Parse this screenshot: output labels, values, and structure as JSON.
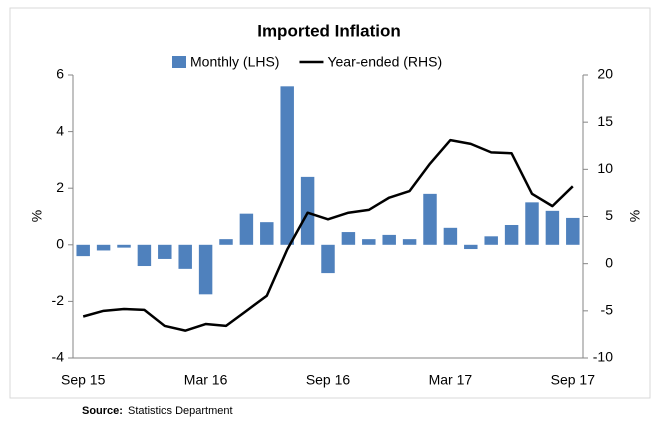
{
  "chart_data": {
    "type": "bar_line",
    "title": "Imported Inflation",
    "y_label": "%",
    "y2_label": "%",
    "source_label": "Source:",
    "source": "Statistics Department",
    "categories": [
      "Sep 15",
      null,
      null,
      null,
      null,
      null,
      "Mar 16",
      null,
      null,
      null,
      null,
      null,
      "Sep 16",
      null,
      null,
      null,
      null,
      null,
      "Mar 17",
      null,
      null,
      null,
      null,
      null,
      "Sep 17"
    ],
    "series": [
      {
        "name": "Monthly (LHS)",
        "color": "#4f81bd",
        "kind": "bar",
        "axis": "y",
        "values": [
          -0.4,
          -0.2,
          -0.1,
          -0.75,
          -0.5,
          -0.85,
          -1.75,
          0.2,
          1.1,
          0.8,
          5.6,
          2.4,
          -1.0,
          0.45,
          0.2,
          0.35,
          0.2,
          1.8,
          0.6,
          -0.15,
          0.3,
          0.7,
          1.5,
          1.2,
          0.95
        ]
      },
      {
        "name": "Year-ended (RHS)",
        "color": "#000000",
        "kind": "line",
        "axis": "y2",
        "values": [
          -5.6,
          -5.0,
          -4.8,
          -4.9,
          -6.6,
          -7.1,
          -6.4,
          -6.6,
          -5.0,
          -3.4,
          1.5,
          5.4,
          4.7,
          5.4,
          5.7,
          7.0,
          7.7,
          10.6,
          13.1,
          12.7,
          11.8,
          11.7,
          7.4,
          6.1,
          8.2
        ]
      }
    ],
    "ylim": [
      -4,
      6
    ],
    "yticks": [
      -4,
      -2,
      0,
      2,
      4,
      6
    ],
    "y2lim": [
      -10,
      20
    ],
    "y2ticks": [
      -10,
      -5,
      0,
      5,
      10,
      15,
      20
    ],
    "grid": false
  }
}
